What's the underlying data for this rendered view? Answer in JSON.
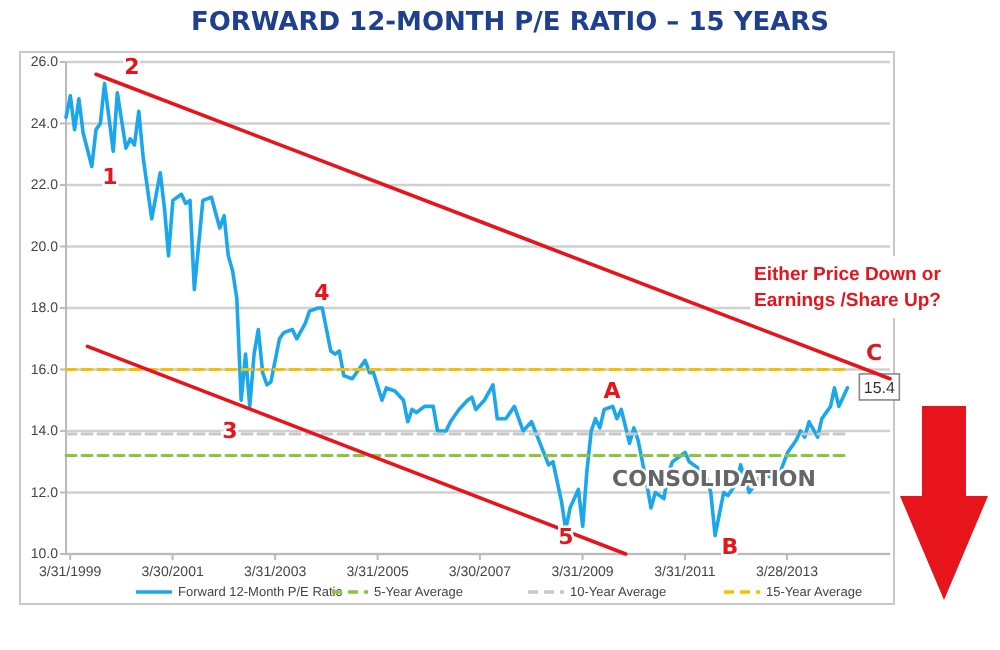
{
  "chart_data": {
    "type": "line",
    "title": "FORWARD 12-MONTH P/E RATIO – 15 YEARS",
    "xlim": [
      "1999-03",
      "2015-04-01"
    ],
    "xticks": [
      {
        "value": "1999-03-31",
        "label": "3/31/1999"
      },
      {
        "value": "2001-03-30",
        "label": "3/30/2001"
      },
      {
        "value": "2003-03-31",
        "label": "3/31/2003"
      },
      {
        "value": "2005-03-31",
        "label": "3/31/2005"
      },
      {
        "value": "2007-03-30",
        "label": "3/30/2007"
      },
      {
        "value": "2009-03-31",
        "label": "3/31/2009"
      },
      {
        "value": "2011-03-31",
        "label": "3/31/2011"
      },
      {
        "value": "2013-03-28",
        "label": "3/28/2013"
      }
    ],
    "ylim": [
      10,
      26
    ],
    "yticks": [
      {
        "value": 10,
        "label": "10.0"
      },
      {
        "value": 12,
        "label": "12.0"
      },
      {
        "value": 14,
        "label": "14.0"
      },
      {
        "value": 16,
        "label": "16.0"
      },
      {
        "value": 18,
        "label": "18.0"
      },
      {
        "value": 20,
        "label": "20.0"
      },
      {
        "value": 22,
        "label": "22.0"
      },
      {
        "value": 24,
        "label": "24.0"
      },
      {
        "value": 26,
        "label": "26.0"
      }
    ],
    "grid": "y",
    "legend": "bottom",
    "marker": "none",
    "series": [
      {
        "name": "Forward 12-Month P/E Ratio",
        "color": "#1aa7ec",
        "line_style": "solid",
        "x": [
          "1999-03",
          "1999-04",
          "1999-05",
          "1999-06",
          "1999-07",
          "1999-09",
          "1999-10",
          "1999-11",
          "1999-12",
          "2000-02",
          "2000-03",
          "2000-05",
          "2000-06",
          "2000-07",
          "2000-08",
          "2000-09",
          "2000-11",
          "2001-01",
          "2001-02",
          "2001-03",
          "2001-04",
          "2001-06",
          "2001-07",
          "2001-08",
          "2001-09",
          "2001-11",
          "2002-01",
          "2002-03",
          "2002-04",
          "2002-05",
          "2002-06",
          "2002-07",
          "2002-08",
          "2002-09",
          "2002-10",
          "2002-11",
          "2002-12",
          "2003-01",
          "2003-02",
          "2003-03",
          "2003-05",
          "2003-06",
          "2003-08",
          "2003-09",
          "2003-11",
          "2003-12",
          "2004-02",
          "2004-03",
          "2004-05",
          "2004-06",
          "2004-07",
          "2004-08",
          "2004-10",
          "2004-11",
          "2005-01",
          "2005-02",
          "2005-03",
          "2005-05",
          "2005-06",
          "2005-08",
          "2005-10",
          "2005-11",
          "2005-12",
          "2006-01",
          "2006-03",
          "2006-05",
          "2006-06",
          "2006-08",
          "2006-09",
          "2006-11",
          "2007-01",
          "2007-02",
          "2007-03",
          "2007-05",
          "2007-07",
          "2007-08",
          "2007-10",
          "2007-12",
          "2008-02",
          "2008-04",
          "2008-06",
          "2008-08",
          "2008-09",
          "2008-11",
          "2008-12",
          "2009-01",
          "2009-03",
          "2009-04",
          "2009-05",
          "2009-06",
          "2009-07",
          "2009-08",
          "2009-09",
          "2009-11",
          "2009-12",
          "2010-01",
          "2010-03",
          "2010-04",
          "2010-05",
          "2010-07",
          "2010-08",
          "2010-09",
          "2010-11",
          "2010-12",
          "2011-01",
          "2011-04",
          "2011-05",
          "2011-07",
          "2011-09",
          "2011-10",
          "2011-11",
          "2012-01",
          "2012-02",
          "2012-04",
          "2012-05",
          "2012-07",
          "2012-09",
          "2012-10",
          "2012-12",
          "2013-02",
          "2013-04",
          "2013-06",
          "2013-07",
          "2013-08",
          "2013-09",
          "2013-11",
          "2013-12",
          "2014-02",
          "2014-03",
          "2014-04",
          "2014-06"
        ],
        "values": [
          24.2,
          24.9,
          23.8,
          24.8,
          23.7,
          22.6,
          23.8,
          24.0,
          25.3,
          23.1,
          25.0,
          23.2,
          23.5,
          23.3,
          24.4,
          22.9,
          20.9,
          22.4,
          21.2,
          19.7,
          21.5,
          21.7,
          21.4,
          21.5,
          18.6,
          21.5,
          21.6,
          20.6,
          21.0,
          19.7,
          19.2,
          18.3,
          15.0,
          16.5,
          14.8,
          16.5,
          17.3,
          15.9,
          15.5,
          15.6,
          17.0,
          17.2,
          17.3,
          17.0,
          17.5,
          17.9,
          18.0,
          18.0,
          16.6,
          16.5,
          16.6,
          15.8,
          15.7,
          15.9,
          16.3,
          15.9,
          15.9,
          15.0,
          15.4,
          15.3,
          15.0,
          14.3,
          14.7,
          14.6,
          14.8,
          14.8,
          14.0,
          14.0,
          14.3,
          14.7,
          15.0,
          15.1,
          14.7,
          15.0,
          15.5,
          14.4,
          14.4,
          14.8,
          14.0,
          14.3,
          13.6,
          12.9,
          13.0,
          11.7,
          10.8,
          11.5,
          12.1,
          10.9,
          12.7,
          14.0,
          14.4,
          14.1,
          14.7,
          14.8,
          14.4,
          14.7,
          13.6,
          14.1,
          13.7,
          12.3,
          11.5,
          12.0,
          11.8,
          12.6,
          13.0,
          13.3,
          13.0,
          12.8,
          12.5,
          12.0,
          10.6,
          12.0,
          11.9,
          12.3,
          12.9,
          12.0,
          12.4,
          12.6,
          12.5,
          12.6,
          13.3,
          13.7,
          14.0,
          13.8,
          14.3,
          13.8,
          14.4,
          14.8,
          15.4,
          14.8,
          15.4
        ],
        "value_labels": [
          null,
          null,
          null,
          null,
          null,
          null,
          null,
          null,
          null,
          null,
          null,
          null,
          null,
          null,
          null,
          null,
          null,
          null,
          null,
          null,
          null,
          null,
          null,
          null,
          null,
          null,
          null,
          null,
          null,
          null,
          null,
          null,
          null,
          null,
          null,
          null,
          null,
          null,
          null,
          null,
          null,
          null,
          null,
          null,
          null,
          null,
          null,
          null,
          null,
          null,
          null,
          null,
          null,
          null,
          null,
          null,
          null,
          null,
          null,
          null,
          null,
          null,
          null,
          null,
          null,
          null,
          null,
          null,
          null,
          null,
          null,
          null,
          null,
          null,
          null,
          null,
          null,
          null,
          null,
          null,
          null,
          null,
          null,
          null,
          null,
          null,
          null,
          null,
          null,
          null,
          null,
          null,
          null,
          null,
          null,
          null,
          null,
          null,
          null,
          null,
          null,
          null,
          null,
          null,
          null,
          null,
          null,
          null,
          null,
          null,
          null,
          null,
          null,
          null,
          null,
          null,
          null,
          null,
          null,
          null,
          null,
          null,
          null,
          null,
          null,
          null,
          null,
          null,
          null,
          null,
          "15.4"
        ]
      },
      {
        "name": "5-Year Average",
        "color": "#8cc63f",
        "line_style": "dashed",
        "x": [
          "1999-03",
          "2014-06"
        ],
        "values": [
          13.2,
          13.2
        ]
      },
      {
        "name": "10-Year Average",
        "color": "#c8c8c8",
        "line_style": "dashed",
        "x": [
          "1999-03",
          "2014-06"
        ],
        "values": [
          13.9,
          13.9
        ]
      },
      {
        "name": "15-Year Average",
        "color": "#f5c000",
        "line_style": "dashed",
        "x": [
          "1999-03",
          "2014-06"
        ],
        "values": [
          16.0,
          16.0
        ]
      },
      {
        "color": "#e8141c",
        "line_style": "solid",
        "x": [
          "1999-10",
          "2015-04"
        ],
        "values": [
          25.6,
          15.7
        ]
      },
      {
        "color": "#e8141c",
        "line_style": "solid",
        "x": [
          "1999-08",
          "2010-02"
        ],
        "values": [
          16.75,
          10.0
        ]
      }
    ],
    "annotations": [
      "1",
      "2",
      "3",
      "4",
      "5",
      "A",
      "B",
      "C",
      "CONSOLIDATION",
      "Either Price Down or\nEarnings /Share Up?"
    ]
  }
}
